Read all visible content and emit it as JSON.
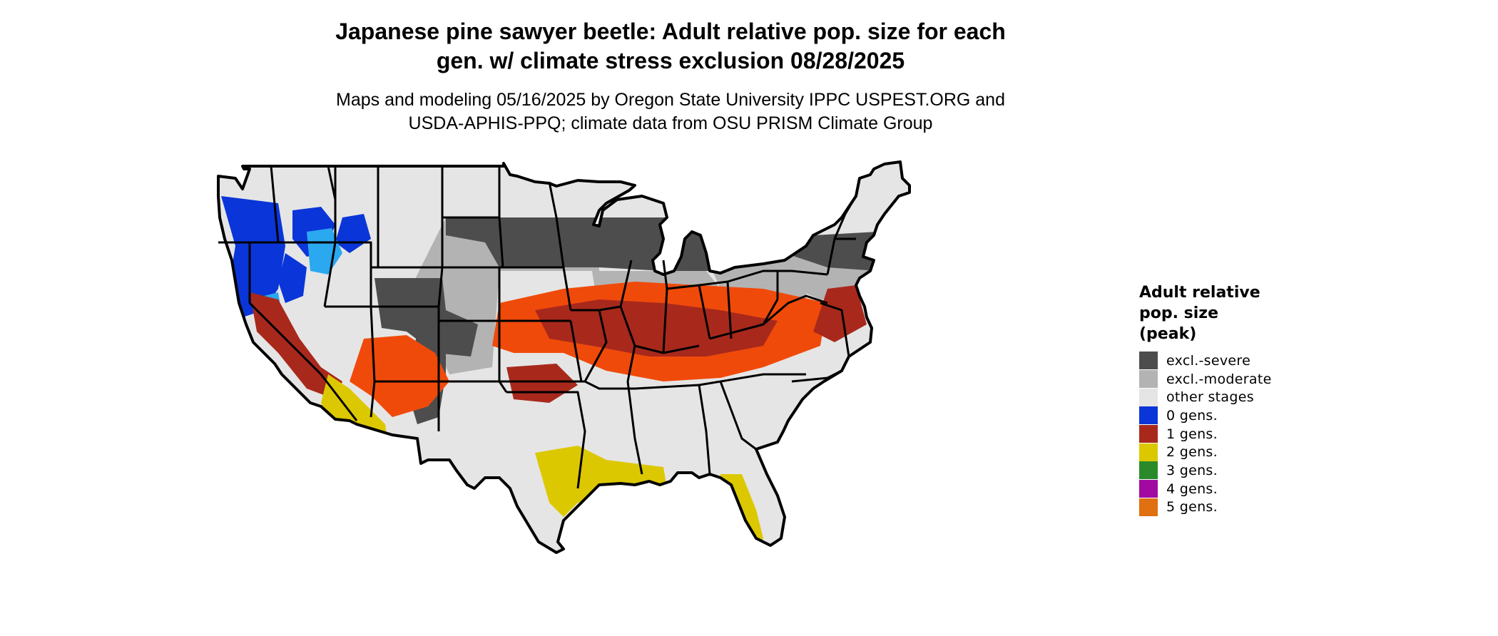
{
  "title": {
    "line1": "Japanese pine sawyer beetle: Adult relative pop. size for each",
    "line2": "gen. w/ climate stress exclusion 08/28/2025"
  },
  "subtitle": {
    "line1": "Maps and modeling 05/16/2025 by Oregon State University IPPC USPEST.ORG and",
    "line2": "USDA-APHIS-PPQ; climate data from OSU PRISM Climate Group"
  },
  "legend": {
    "title_lines": [
      "Adult relative",
      "pop. size",
      "(peak)"
    ],
    "items": [
      {
        "label": "excl.-severe",
        "color": "#4d4d4d"
      },
      {
        "label": "excl.-moderate",
        "color": "#b3b3b3"
      },
      {
        "label": "other stages",
        "color": "#e5e5e5"
      },
      {
        "label": "0 gens.",
        "color": "#0a35d8"
      },
      {
        "label": "1 gens.",
        "color": "#a8291c"
      },
      {
        "label": "2 gens.",
        "color": "#dcc800"
      },
      {
        "label": "3 gens.",
        "color": "#2a8a2a"
      },
      {
        "label": "4 gens.",
        "color": "#a00aa0"
      },
      {
        "label": "5 gens.",
        "color": "#e07010"
      }
    ]
  },
  "map_colors": {
    "severe": "#4d4d4d",
    "moderate": "#b3b3b3",
    "other": "#e5e5e5",
    "zero": "#0a35d8",
    "zero_light": "#2aa8f0",
    "one": "#a8291c",
    "one_bright": "#f04a0a",
    "two": "#dcc800",
    "border": "#000000"
  }
}
